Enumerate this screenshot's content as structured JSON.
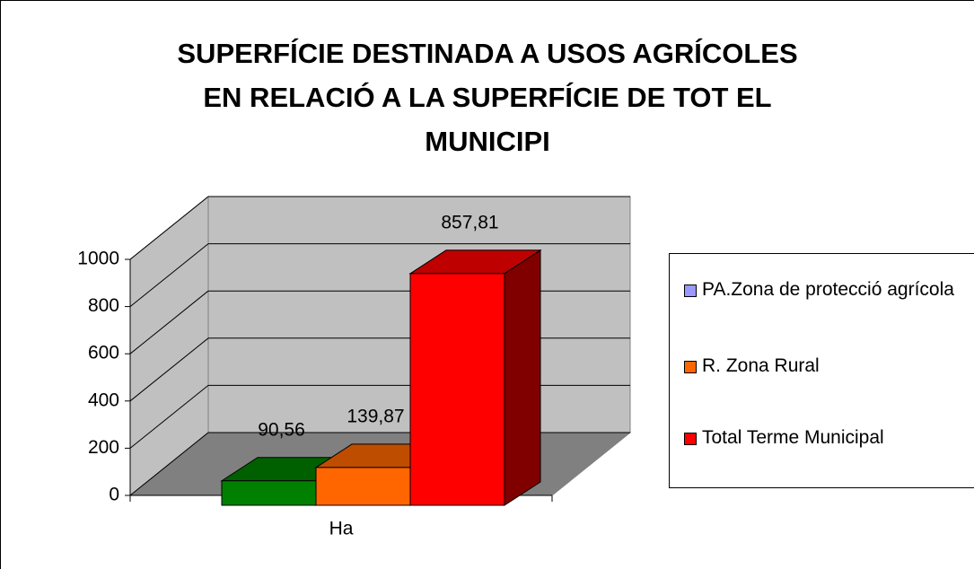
{
  "chart_data": {
    "type": "bar3d",
    "title": [
      "SUPERFÍCIE DESTINADA A USOS AGRÍCOLES",
      "EN RELACIÓ A LA SUPERFÍCIE DE TOT EL",
      "MUNICIPI"
    ],
    "categories": [
      "Ha"
    ],
    "series": [
      {
        "name": "PA.Zona de protecció agrícola",
        "color": "#008000",
        "legend_color": "#9999ff",
        "values": [
          90.56
        ],
        "value_labels": [
          "90,56"
        ]
      },
      {
        "name": "R. Zona Rural",
        "color": "#ff6600",
        "legend_color": "#ff6600",
        "values": [
          139.87
        ],
        "value_labels": [
          "139,87"
        ]
      },
      {
        "name": "Total Terme Municipal",
        "color": "#ff0000",
        "legend_color": "#ff0000",
        "values": [
          857.81
        ],
        "value_labels": [
          "857,81"
        ]
      }
    ],
    "ylim": [
      0,
      1000
    ],
    "yticks": [
      0,
      200,
      400,
      600,
      800,
      1000
    ],
    "grid": true,
    "legend": "right"
  }
}
